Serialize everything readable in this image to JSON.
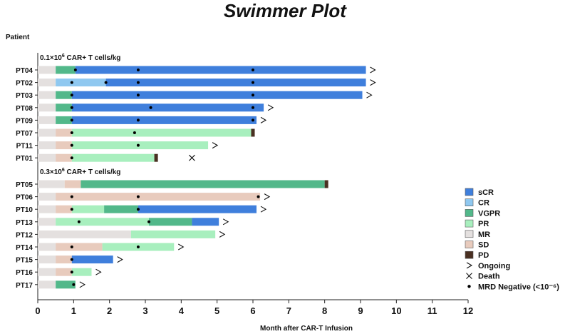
{
  "chart_data": {
    "type": "swimmer",
    "title": "Swimmer Plot",
    "ylabel": "Patient",
    "xlabel": "Month after CAR-T Infusion",
    "xlim": [
      0,
      12
    ],
    "xticks": [
      "0",
      "1",
      "2",
      "3",
      "4",
      "5",
      "6",
      "7",
      "8",
      "9",
      "10",
      "11",
      "12"
    ],
    "response_colors": {
      "sCR": "#3f7fdc",
      "CR": "#8fc8f0",
      "VGPR": "#52b88a",
      "PR": "#a8efbe",
      "MR": "#e4e0df",
      "SD": "#e8cbbd",
      "PD": "#4a3022"
    },
    "legend": {
      "position": "right",
      "items": [
        {
          "key": "sCR",
          "label": "sCR"
        },
        {
          "key": "CR",
          "label": "CR"
        },
        {
          "key": "VGPR",
          "label": "VGPR"
        },
        {
          "key": "PR",
          "label": "PR"
        },
        {
          "key": "MR",
          "label": "MR"
        },
        {
          "key": "SD",
          "label": "SD"
        },
        {
          "key": "PD",
          "label": "PD"
        },
        {
          "key": "ongoing",
          "label": "Ongoing"
        },
        {
          "key": "death",
          "label": "Death"
        },
        {
          "key": "mrd",
          "label": "MRD Negative (<10⁻⁶)"
        }
      ]
    },
    "groups": [
      {
        "label_pre": "0.1×10",
        "label_exp": "6",
        "label_post": " CAR+ T cells/kg",
        "patients": [
          {
            "id": "PT04",
            "segments": [
              [
                "MR",
                0,
                0.5
              ],
              [
                "VGPR",
                0.5,
                1.05
              ],
              [
                "sCR",
                1.05,
                9.15
              ]
            ],
            "mrd": [
              1.05,
              2.8,
              6.0
            ],
            "ongoing": true,
            "death": null
          },
          {
            "id": "PT02",
            "segments": [
              [
                "MR",
                0,
                0.5
              ],
              [
                "CR",
                0.5,
                1.9
              ],
              [
                "sCR",
                1.9,
                9.15
              ]
            ],
            "mrd": [
              0.95,
              1.9,
              2.8,
              6.0
            ],
            "ongoing": true,
            "death": null
          },
          {
            "id": "PT03",
            "segments": [
              [
                "MR",
                0,
                0.5
              ],
              [
                "VGPR",
                0.5,
                0.95
              ],
              [
                "sCR",
                0.95,
                9.05
              ]
            ],
            "mrd": [
              0.95,
              2.8,
              6.0
            ],
            "ongoing": true,
            "death": null
          },
          {
            "id": "PT08",
            "segments": [
              [
                "MR",
                0,
                0.5
              ],
              [
                "VGPR",
                0.5,
                0.95
              ],
              [
                "sCR",
                0.95,
                6.3
              ]
            ],
            "mrd": [
              0.95,
              3.15,
              6.0
            ],
            "ongoing": true,
            "death": null
          },
          {
            "id": "PT09",
            "segments": [
              [
                "MR",
                0,
                0.5
              ],
              [
                "VGPR",
                0.5,
                0.95
              ],
              [
                "sCR",
                0.95,
                6.1
              ]
            ],
            "mrd": [
              0.95,
              2.8,
              6.0
            ],
            "ongoing": true,
            "death": null
          },
          {
            "id": "PT07",
            "segments": [
              [
                "MR",
                0,
                0.5
              ],
              [
                "SD",
                0.5,
                0.95
              ],
              [
                "PR",
                0.95,
                5.95
              ],
              [
                "PD",
                5.95,
                6.05
              ]
            ],
            "mrd": [
              0.95,
              2.7
            ],
            "ongoing": false,
            "death": null
          },
          {
            "id": "PT11",
            "segments": [
              [
                "MR",
                0,
                0.5
              ],
              [
                "SD",
                0.5,
                0.95
              ],
              [
                "PR",
                0.95,
                4.75
              ]
            ],
            "mrd": [
              0.95,
              2.8
            ],
            "ongoing": true,
            "death": null
          },
          {
            "id": "PT01",
            "segments": [
              [
                "MR",
                0,
                0.5
              ],
              [
                "SD",
                0.5,
                0.95
              ],
              [
                "PR",
                0.95,
                3.25
              ],
              [
                "PD",
                3.25,
                3.35
              ]
            ],
            "mrd": [
              0.95
            ],
            "ongoing": false,
            "death": 4.3
          }
        ]
      },
      {
        "label_pre": "0.3×10",
        "label_exp": "6",
        "label_post": " CAR+ T cells/kg",
        "patients": [
          {
            "id": "PT05",
            "segments": [
              [
                "MR",
                0,
                0.75
              ],
              [
                "SD",
                0.75,
                1.2
              ],
              [
                "VGPR",
                1.2,
                8.0
              ],
              [
                "PD",
                8.0,
                8.1
              ]
            ],
            "mrd": [],
            "ongoing": false,
            "death": null
          },
          {
            "id": "PT06",
            "segments": [
              [
                "MR",
                0,
                0.5
              ],
              [
                "SD",
                0.5,
                6.2
              ]
            ],
            "mrd": [
              0.95,
              2.8,
              6.15
            ],
            "ongoing": true,
            "death": null
          },
          {
            "id": "PT10",
            "segments": [
              [
                "MR",
                0,
                0.5
              ],
              [
                "SD",
                0.5,
                0.95
              ],
              [
                "PR",
                0.95,
                1.85
              ],
              [
                "VGPR",
                1.85,
                2.8
              ],
              [
                "sCR",
                2.8,
                6.1
              ]
            ],
            "mrd": [
              0.95,
              2.8
            ],
            "ongoing": true,
            "death": null
          },
          {
            "id": "PT13",
            "segments": [
              [
                "MR",
                0,
                0.5
              ],
              [
                "PR",
                0.5,
                3.1
              ],
              [
                "VGPR",
                3.1,
                4.3
              ],
              [
                "sCR",
                4.3,
                5.05
              ]
            ],
            "mrd": [
              1.15,
              3.1
            ],
            "ongoing": true,
            "death": null
          },
          {
            "id": "PT12",
            "segments": [
              [
                "MR",
                0,
                2.6
              ],
              [
                "PR",
                2.6,
                4.95
              ]
            ],
            "mrd": [],
            "ongoing": true,
            "death": null
          },
          {
            "id": "PT14",
            "segments": [
              [
                "MR",
                0,
                0.5
              ],
              [
                "SD",
                0.5,
                1.8
              ],
              [
                "PR",
                1.8,
                3.8
              ]
            ],
            "mrd": [
              0.95,
              2.8
            ],
            "ongoing": true,
            "death": null
          },
          {
            "id": "PT15",
            "segments": [
              [
                "MR",
                0,
                0.5
              ],
              [
                "SD",
                0.5,
                0.95
              ],
              [
                "sCR",
                0.95,
                2.1
              ]
            ],
            "mrd": [
              0.95
            ],
            "ongoing": true,
            "death": null
          },
          {
            "id": "PT16",
            "segments": [
              [
                "MR",
                0,
                0.5
              ],
              [
                "SD",
                0.5,
                0.95
              ],
              [
                "PR",
                0.95,
                1.5
              ]
            ],
            "mrd": [
              0.95
            ],
            "ongoing": true,
            "death": null
          },
          {
            "id": "PT17",
            "segments": [
              [
                "MR",
                0,
                0.5
              ],
              [
                "VGPR",
                0.5,
                1.05
              ]
            ],
            "mrd": [
              1.0
            ],
            "ongoing": true,
            "death": null
          }
        ]
      }
    ]
  }
}
